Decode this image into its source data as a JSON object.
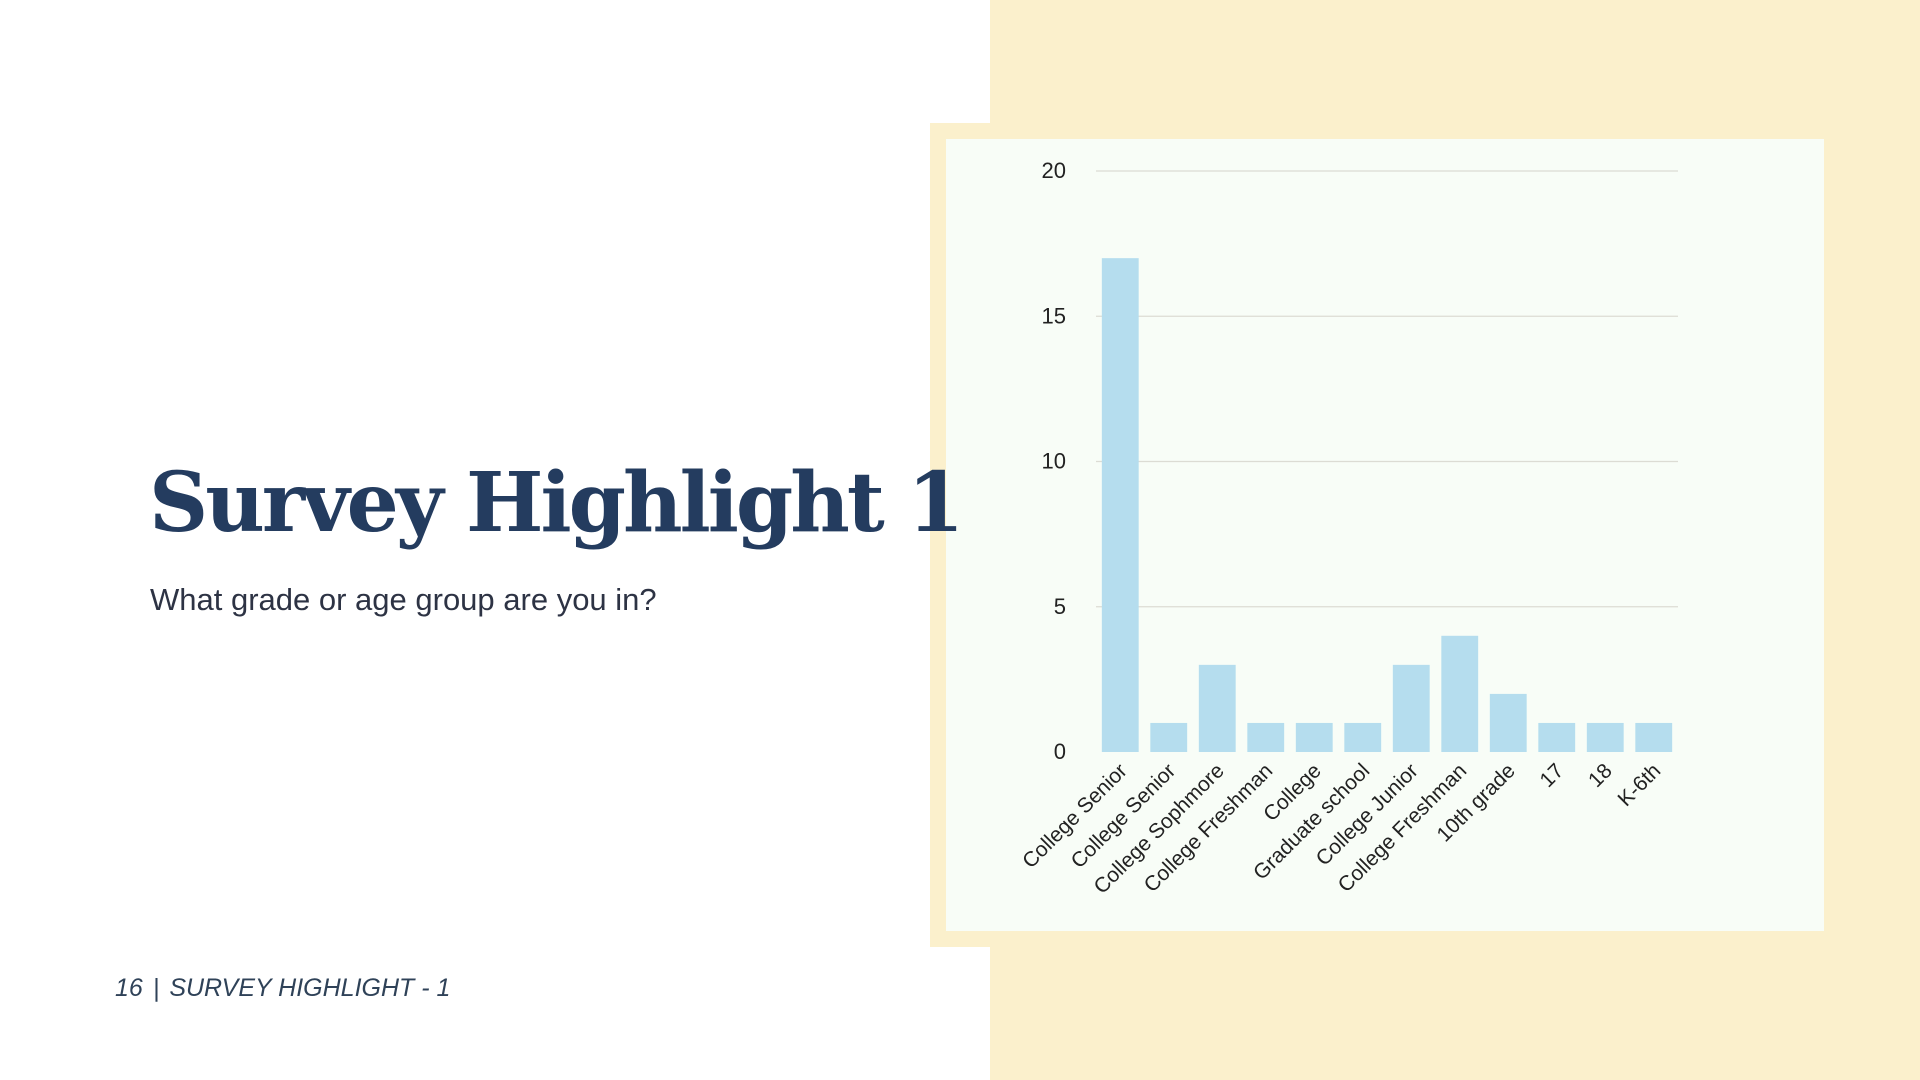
{
  "slide": {
    "title": "Survey Highlight 1",
    "subtitle": "What grade or age group are you in?",
    "footer": {
      "page_number": "16",
      "separator": "|",
      "section": "SURVEY HIGHLIGHT - 1"
    }
  },
  "colors": {
    "title": "#243c5f",
    "panel": "#fbf0cc",
    "card": "#f8fdf7",
    "bar": "#b5ddee",
    "grid": "#dcdcd4"
  },
  "chart_data": {
    "type": "bar",
    "categories": [
      "College Senior",
      "College Senior",
      "College Sophmore",
      "College Freshman",
      "College",
      "Graduate school",
      "College Junior",
      "College Freshman",
      "10th grade",
      "17",
      "18",
      "K-6th"
    ],
    "values": [
      17,
      1,
      3,
      1,
      1,
      1,
      3,
      4,
      2,
      1,
      1,
      1
    ],
    "ylim": [
      0,
      20
    ],
    "yticks": [
      "0",
      "5",
      "10",
      "15",
      "20"
    ],
    "grid": true,
    "legend": "none"
  }
}
